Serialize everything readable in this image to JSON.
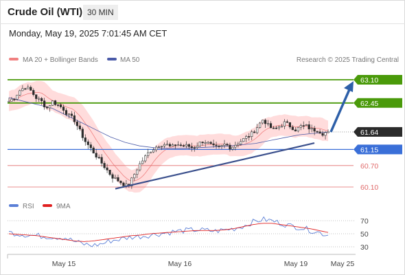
{
  "header": {
    "title": "Crude Oil (WTI)",
    "timeframe": "30 MIN"
  },
  "timestamp": "Monday, May 19, 2025 7:01:45 AM CET",
  "legend": {
    "ma20": "MA 20 + Bollinger Bands",
    "ma50": "MA 50",
    "credit": "Research © 2025 Trading Central"
  },
  "rsi_legend": {
    "rsi": "RSI",
    "ma": "9MA"
  },
  "colors": {
    "resistance": "#4a9a0a",
    "current": "#2b2b2b",
    "pivot": "#3a6fd8",
    "support": "#e06a6a",
    "trend": "#3a4f8c",
    "arrow": "#2d5fa8",
    "band": "#ffd6d6",
    "ma20": "#f08080",
    "ma50": "#4a5aa8",
    "rsi": "#5b7fd6",
    "rsi_ma": "#e02020",
    "bull": "#2b2b2b",
    "bear": "#2b2b2b"
  },
  "chart_data": {
    "type": "candlestick",
    "title": "Crude Oil (WTI)",
    "ylim": [
      60.0,
      63.3
    ],
    "x_labels": [
      "May 15",
      "May 16",
      "May 19",
      "May 25"
    ],
    "levels": [
      {
        "value": 63.1,
        "label": "63.10",
        "kind": "resistance"
      },
      {
        "value": 62.45,
        "label": "62.45",
        "kind": "resistance"
      },
      {
        "value": 61.64,
        "label": "61.64",
        "kind": "current"
      },
      {
        "value": 61.15,
        "label": "61.15",
        "kind": "pivot"
      },
      {
        "value": 60.7,
        "label": "60.70",
        "kind": "support"
      },
      {
        "value": 60.1,
        "label": "60.10",
        "kind": "support"
      }
    ],
    "price_path": [
      62.5,
      62.6,
      62.8,
      62.9,
      62.8,
      62.6,
      62.5,
      62.3,
      62.5,
      62.4,
      62.3,
      62.1,
      62.0,
      61.7,
      61.4,
      61.2,
      61.0,
      60.8,
      60.6,
      60.4,
      60.3,
      60.2,
      60.1,
      60.4,
      60.7,
      60.9,
      61.1,
      61.2,
      61.3,
      61.3,
      61.2,
      61.3,
      61.25,
      61.25,
      61.2,
      61.3,
      61.4,
      61.3,
      61.2,
      61.2,
      61.3,
      61.2,
      61.3,
      61.4,
      61.5,
      61.6,
      61.8,
      62.0,
      61.8,
      61.7,
      61.8,
      61.9,
      61.8,
      61.7,
      61.8,
      61.8,
      61.7,
      61.7,
      61.6,
      61.64
    ],
    "ma50_path": [
      62.6,
      62.5,
      62.4,
      62.3,
      62.1,
      61.9,
      61.7,
      61.5,
      61.35,
      61.25,
      61.2,
      61.18,
      61.18,
      61.2,
      61.22,
      61.24,
      61.28,
      61.32,
      61.4,
      61.48,
      61.56,
      61.6,
      61.64
    ],
    "trendline": [
      [
        0.0,
        60.05
      ],
      [
        1.0,
        61.33
      ]
    ],
    "forecast_arrow": {
      "from": 61.64,
      "to": 63.1
    },
    "rsi": {
      "ticks": [
        "70",
        "50",
        "30"
      ],
      "ylim": [
        20,
        80
      ],
      "values": [
        52,
        50,
        48,
        47,
        46,
        45,
        44,
        38,
        34,
        32,
        35,
        40,
        42,
        45,
        46,
        48,
        50,
        52,
        54,
        55,
        56,
        55,
        54,
        56,
        58,
        62,
        68,
        72,
        70,
        66,
        62,
        60,
        56,
        52,
        48
      ],
      "ma_values": [
        50,
        49,
        48,
        47,
        45,
        43,
        41,
        39,
        38,
        39,
        41,
        43,
        45,
        47,
        48,
        50,
        51,
        52,
        53,
        54,
        55,
        55,
        55,
        56,
        58,
        61,
        64,
        66,
        66,
        64,
        62,
        60,
        58,
        55,
        52
      ]
    }
  }
}
